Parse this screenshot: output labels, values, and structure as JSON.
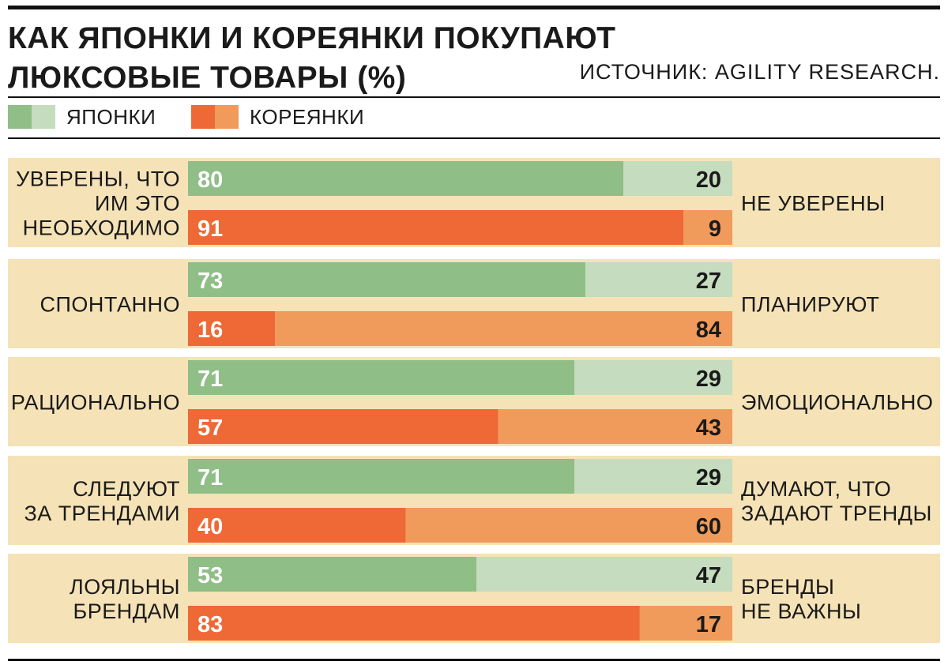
{
  "header": {
    "title_line1": "КАК ЯПОНКИ И КОРЕЯНКИ ПОКУПАЮТ",
    "title_line2": "ЛЮКСОВЫЕ ТОВАРЫ (%)",
    "source": "ИСТОЧНИК: AGILITY RESEARCH."
  },
  "legend": [
    {
      "name": "ЯПОНКИ",
      "colors": [
        "#8fbe87",
        "#c5dcbf"
      ]
    },
    {
      "name": "КОРЕЯНКИ",
      "colors": [
        "#ee6935",
        "#f09b5b"
      ]
    }
  ],
  "colors": {
    "panel_bg": "#f5e3b7",
    "japan_main": "#8fbe87",
    "japan_rest": "#c5dcbf",
    "korea_main": "#ee6935",
    "korea_rest": "#f09b5b",
    "rule": "#111111"
  },
  "chart_data": {
    "type": "bar",
    "subtype": "stacked-horizontal-100",
    "title": "КАК ЯПОНКИ И КОРЕЯНКИ ПОКУПАЮТ ЛЮКСОВЫЕ ТОВАРЫ (%)",
    "xlim": [
      0,
      100
    ],
    "series": [
      "ЯПОНКИ",
      "КОРЕЯНКИ"
    ],
    "categories": [
      {
        "left_label": [
          "УВЕРЕНЫ, ЧТО",
          "ИМ ЭТО",
          "НЕОБХОДИМО"
        ],
        "right_label": [
          "НЕ УВЕРЕНЫ"
        ],
        "japan": [
          80,
          20
        ],
        "korea": [
          91,
          9
        ]
      },
      {
        "left_label": [
          "СПОНТАННО"
        ],
        "right_label": [
          "ПЛАНИРУЮТ"
        ],
        "japan": [
          73,
          27
        ],
        "korea": [
          16,
          84
        ]
      },
      {
        "left_label": [
          "РАЦИОНАЛЬНО"
        ],
        "right_label": [
          "ЭМОЦИОНАЛЬНО"
        ],
        "japan": [
          71,
          29
        ],
        "korea": [
          57,
          43
        ]
      },
      {
        "left_label": [
          "СЛЕДУЮТ",
          "ЗА ТРЕНДАМИ"
        ],
        "right_label": [
          "ДУМАЮТ, ЧТО",
          "ЗАДАЮТ ТРЕНДЫ"
        ],
        "japan": [
          71,
          29
        ],
        "korea": [
          40,
          60
        ]
      },
      {
        "left_label": [
          "ЛОЯЛЬНЫ",
          "БРЕНДАМ"
        ],
        "right_label": [
          "БРЕНДЫ",
          "НЕ ВАЖНЫ"
        ],
        "japan": [
          53,
          47
        ],
        "korea": [
          83,
          17
        ]
      }
    ]
  }
}
